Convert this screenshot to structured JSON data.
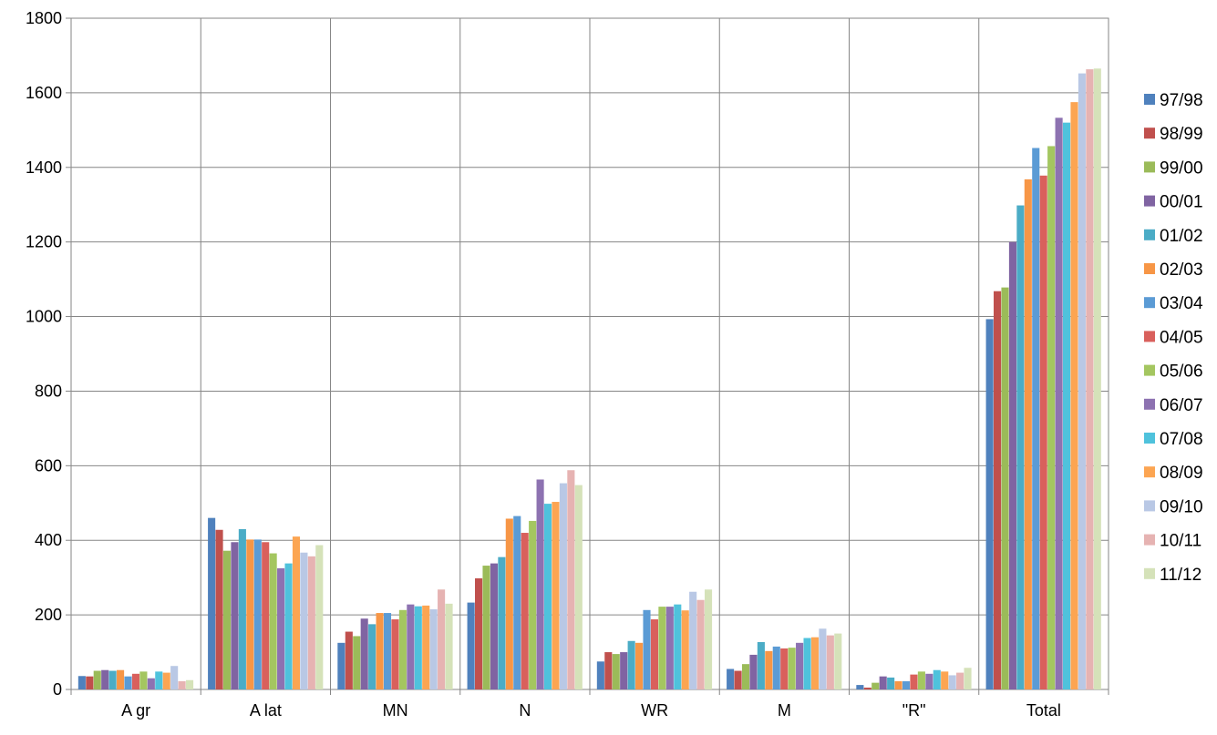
{
  "chart_data": {
    "type": "bar",
    "title": "",
    "xlabel": "",
    "ylabel": "",
    "ylim": [
      0,
      1800
    ],
    "yticks": [
      0,
      200,
      400,
      600,
      800,
      1000,
      1200,
      1400,
      1600,
      1800
    ],
    "grid": true,
    "legend_position": "right",
    "categories": [
      "A gr",
      "A lat",
      "MN",
      "N",
      "WR",
      "M",
      "\"R\"",
      "Total"
    ],
    "series": [
      {
        "name": "97/98",
        "color": "#4F81BD",
        "values": [
          36,
          460,
          125,
          233,
          75,
          55,
          12,
          993
        ]
      },
      {
        "name": "98/99",
        "color": "#C0504D",
        "values": [
          35,
          428,
          155,
          298,
          100,
          50,
          5,
          1068
        ]
      },
      {
        "name": "99/00",
        "color": "#9BBB59",
        "values": [
          50,
          372,
          143,
          332,
          95,
          68,
          18,
          1078
        ]
      },
      {
        "name": "00/01",
        "color": "#8064A2",
        "values": [
          52,
          395,
          190,
          338,
          100,
          93,
          35,
          1200
        ]
      },
      {
        "name": "01/02",
        "color": "#4BACC6",
        "values": [
          50,
          430,
          175,
          355,
          130,
          127,
          32,
          1298
        ]
      },
      {
        "name": "02/03",
        "color": "#F79646",
        "values": [
          52,
          402,
          205,
          458,
          125,
          103,
          22,
          1368
        ]
      },
      {
        "name": "03/04",
        "color": "#5B9BD5",
        "values": [
          35,
          402,
          205,
          465,
          213,
          115,
          22,
          1452
        ]
      },
      {
        "name": "04/05",
        "color": "#D9605C",
        "values": [
          42,
          395,
          188,
          420,
          188,
          110,
          40,
          1378
        ]
      },
      {
        "name": "05/06",
        "color": "#A4C660",
        "values": [
          48,
          365,
          213,
          452,
          222,
          112,
          48,
          1457
        ]
      },
      {
        "name": "06/07",
        "color": "#8D72B1",
        "values": [
          30,
          325,
          228,
          563,
          222,
          125,
          42,
          1533
        ]
      },
      {
        "name": "07/08",
        "color": "#4FC2DC",
        "values": [
          48,
          338,
          223,
          498,
          228,
          138,
          52,
          1520
        ]
      },
      {
        "name": "08/09",
        "color": "#FCA552",
        "values": [
          45,
          410,
          225,
          503,
          212,
          140,
          48,
          1575
        ]
      },
      {
        "name": "09/10",
        "color": "#B9C8E5",
        "values": [
          63,
          367,
          215,
          553,
          262,
          163,
          38,
          1652
        ]
      },
      {
        "name": "10/11",
        "color": "#E6B3B2",
        "values": [
          22,
          357,
          268,
          588,
          240,
          145,
          45,
          1663
        ]
      },
      {
        "name": "11/12",
        "color": "#D5E2B9",
        "values": [
          25,
          387,
          230,
          548,
          268,
          150,
          58,
          1665
        ]
      }
    ]
  }
}
